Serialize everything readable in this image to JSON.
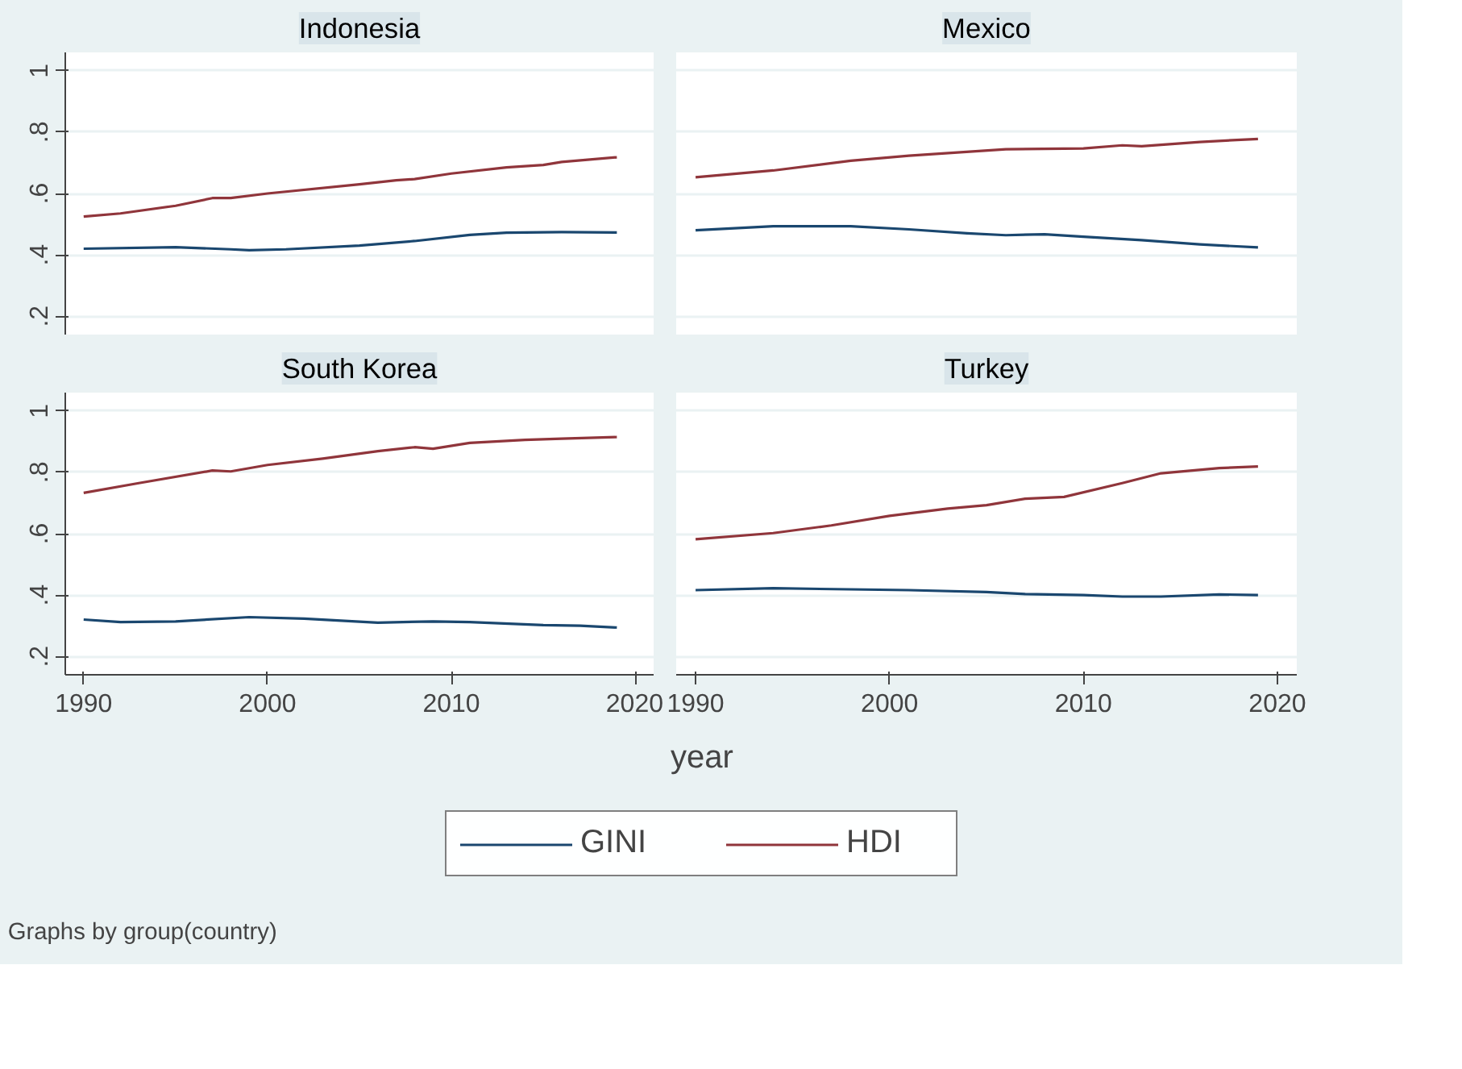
{
  "chart_data": [
    {
      "type": "line",
      "title": "Indonesia",
      "xlim": [
        1989,
        2021
      ],
      "ylim": [
        0.14,
        1.06
      ],
      "xticks": [
        1990,
        2000,
        2010,
        2020
      ],
      "yticks": [
        {
          "value": 0.2,
          "label": ".2"
        },
        {
          "value": 0.4,
          "label": ".4"
        },
        {
          "value": 0.6,
          "label": ".6"
        },
        {
          "value": 0.8,
          "label": ".8"
        },
        1
      ],
      "grid": "y",
      "tick_labels": "y",
      "xlabel": "year",
      "legend": "bottom",
      "annotations": [
        "Graphs by group(country)"
      ],
      "series": [
        {
          "name": "GINI",
          "color": "#1a476f",
          "x": [
            1990,
            1995,
            1998,
            1999,
            2001,
            2005,
            2008,
            2011,
            2013,
            2016,
            2019
          ],
          "values": [
            0.42,
            0.425,
            0.418,
            0.415,
            0.418,
            0.43,
            0.445,
            0.465,
            0.472,
            0.474,
            0.473
          ]
        },
        {
          "name": "HDI",
          "color": "#90353b",
          "x": [
            1990,
            1992,
            1995,
            1997,
            1998,
            2000,
            2005,
            2007,
            2008,
            2010,
            2013,
            2015,
            2016,
            2019
          ],
          "values": [
            0.525,
            0.535,
            0.56,
            0.585,
            0.585,
            0.6,
            0.63,
            0.643,
            0.647,
            0.665,
            0.685,
            0.693,
            0.703,
            0.718
          ]
        }
      ]
    },
    {
      "type": "line",
      "title": "Mexico",
      "xlim": [
        1989,
        2021
      ],
      "ylim": [
        0.14,
        1.06
      ],
      "xticks": [
        1990,
        2000,
        2010,
        2020
      ],
      "yticks": [
        {
          "value": 0.2,
          "label": null
        },
        {
          "value": 0.4,
          "label": null
        },
        {
          "value": 0.6,
          "label": null
        },
        {
          "value": 0.8,
          "label": null
        },
        {
          "value": 1,
          "label": null
        }
      ],
      "grid": "y",
      "tick_labels": false,
      "series": [
        {
          "color": "#1a476f",
          "x": [
            1990,
            1994,
            1998,
            2001,
            2004,
            2006,
            2008,
            2010,
            2013,
            2016,
            2019
          ],
          "values": [
            0.48,
            0.493,
            0.493,
            0.483,
            0.47,
            0.464,
            0.467,
            0.459,
            0.448,
            0.434,
            0.424
          ]
        },
        {
          "color": "#90353b",
          "x": [
            1990,
            1994,
            1998,
            2001,
            2006,
            2010,
            2012,
            2013,
            2016,
            2019
          ],
          "values": [
            0.653,
            0.675,
            0.707,
            0.723,
            0.744,
            0.747,
            0.757,
            0.754,
            0.768,
            0.778
          ]
        }
      ]
    },
    {
      "type": "line",
      "title": "South Korea",
      "xlim": [
        1989,
        2021
      ],
      "ylim": [
        0.14,
        1.06
      ],
      "xticks": [
        1990,
        2000,
        2010,
        2020
      ],
      "yticks": [
        {
          "value": 0.2,
          "label": ".2"
        },
        {
          "value": 0.4,
          "label": ".4"
        },
        {
          "value": 0.6,
          "label": ".6"
        },
        {
          "value": 0.8,
          "label": ".8"
        },
        1
      ],
      "grid": "y",
      "series": [
        {
          "color": "#1a476f",
          "x": [
            1990,
            1992,
            1995,
            1999,
            2002,
            2006,
            2009,
            2011,
            2015,
            2017,
            2019
          ],
          "values": [
            0.32,
            0.312,
            0.314,
            0.328,
            0.323,
            0.31,
            0.314,
            0.312,
            0.302,
            0.3,
            0.294
          ]
        },
        {
          "color": "#90353b",
          "x": [
            1990,
            1993,
            1997,
            1998,
            2000,
            2003,
            2006,
            2008,
            2009,
            2011,
            2014,
            2016,
            2019
          ],
          "values": [
            0.733,
            0.765,
            0.806,
            0.803,
            0.824,
            0.845,
            0.869,
            0.882,
            0.877,
            0.896,
            0.906,
            0.91,
            0.915
          ]
        }
      ]
    },
    {
      "type": "line",
      "title": "Turkey",
      "xlim": [
        1989,
        2021
      ],
      "ylim": [
        0.14,
        1.06
      ],
      "xticks": [
        1990,
        2000,
        2010,
        2020
      ],
      "yticks": [
        {
          "value": 0.2,
          "label": null
        },
        {
          "value": 0.4,
          "label": null
        },
        {
          "value": 0.6,
          "label": null
        },
        {
          "value": 0.8,
          "label": null
        },
        {
          "value": 1,
          "label": null
        }
      ],
      "grid": "y",
      "tick_labels": "x",
      "series": [
        {
          "color": "#1a476f",
          "x": [
            1990,
            1994,
            2001,
            2005,
            2007,
            2010,
            2012,
            2014,
            2017,
            2019
          ],
          "values": [
            0.416,
            0.422,
            0.416,
            0.41,
            0.403,
            0.4,
            0.395,
            0.395,
            0.402,
            0.4
          ]
        },
        {
          "color": "#90353b",
          "x": [
            1990,
            1994,
            1997,
            2000,
            2003,
            2005,
            2007,
            2009,
            2012,
            2014,
            2017,
            2019
          ],
          "values": [
            0.582,
            0.602,
            0.627,
            0.658,
            0.682,
            0.693,
            0.714,
            0.72,
            0.765,
            0.797,
            0.814,
            0.819
          ]
        }
      ]
    }
  ]
}
